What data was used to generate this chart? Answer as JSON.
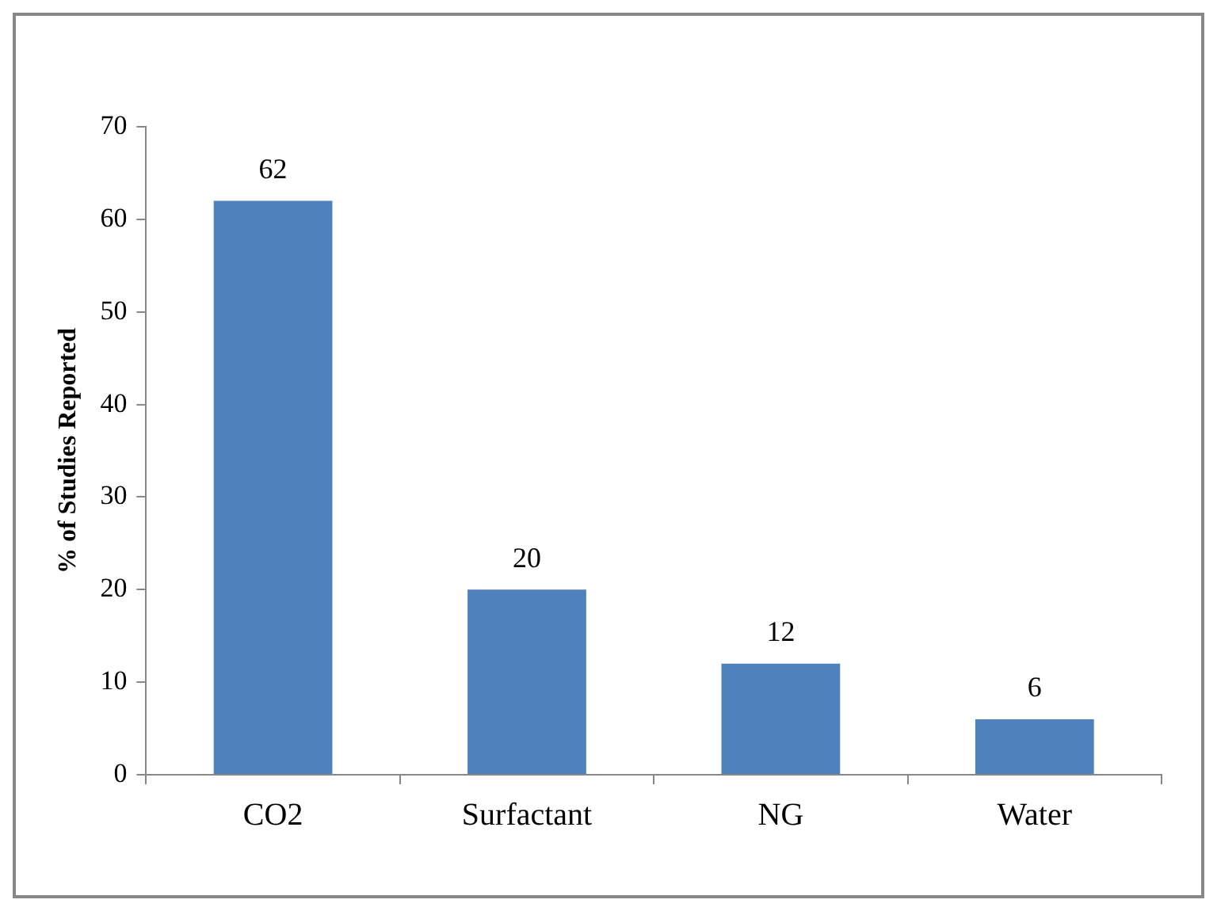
{
  "chart_data": {
    "type": "bar",
    "ylabel": "% of Studies Reported",
    "categories": [
      "CO2",
      "Surfactant",
      "NG",
      "Water"
    ],
    "values": [
      62,
      20,
      12,
      6
    ],
    "color": "#4f81bd",
    "ylim": [
      0,
      70
    ],
    "yticks": [
      0,
      10,
      20,
      30,
      40,
      50,
      60,
      70
    ],
    "grid": false,
    "data_labels": true
  }
}
